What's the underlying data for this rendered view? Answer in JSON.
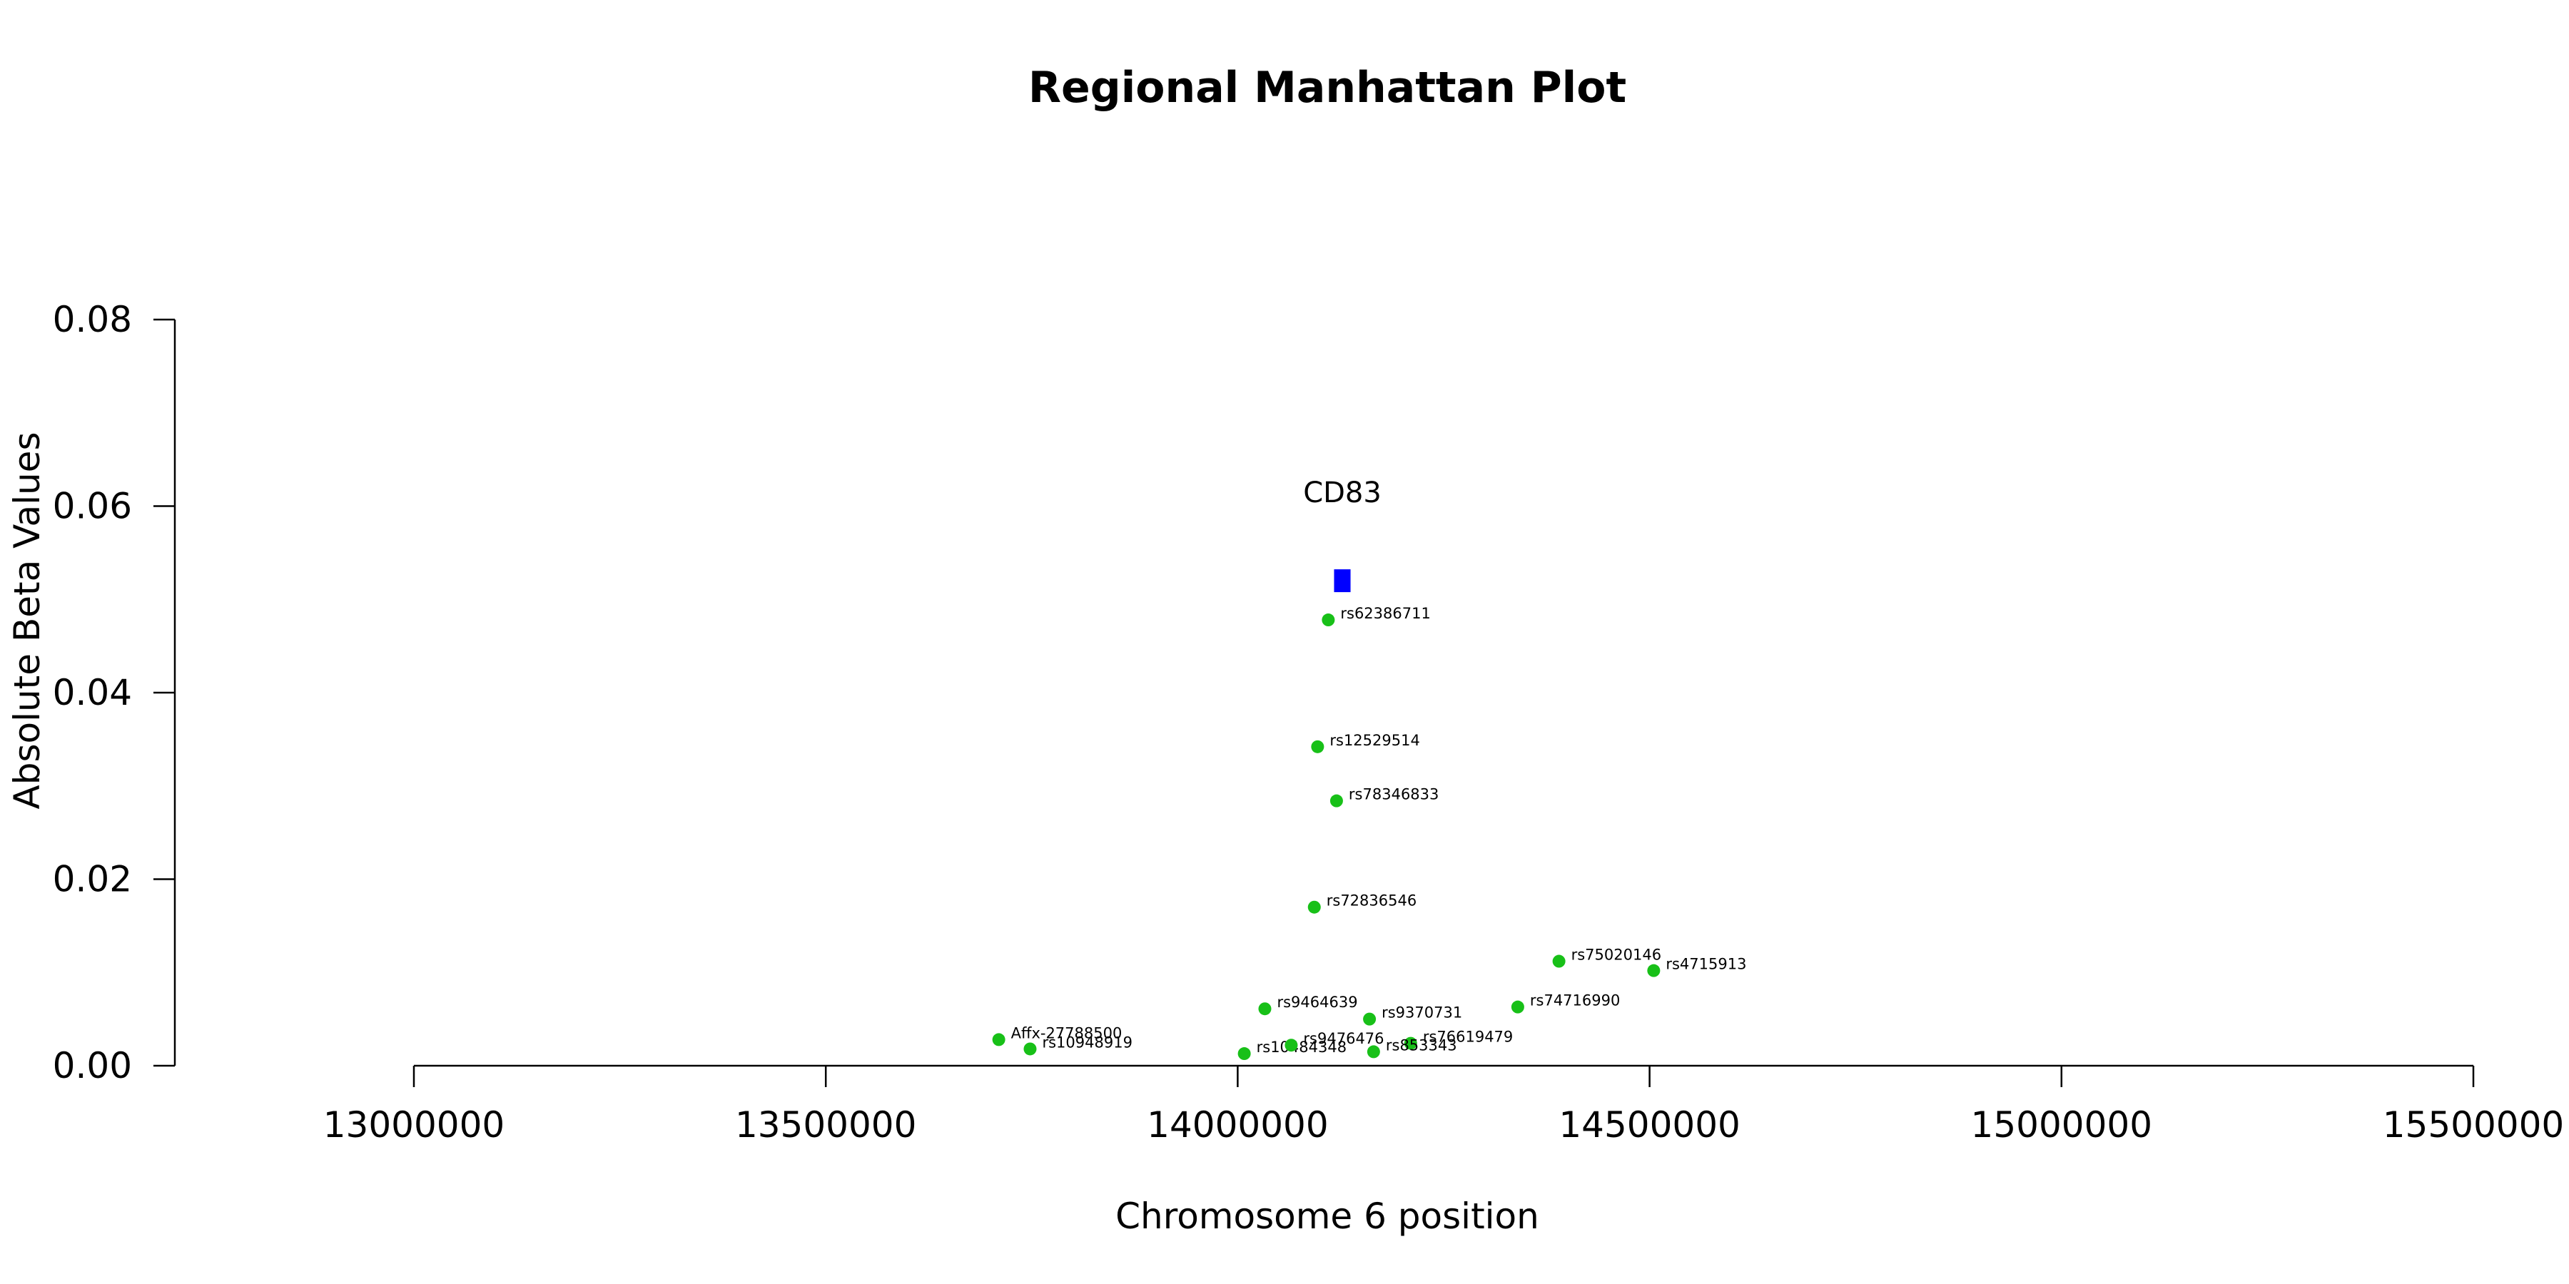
{
  "chart_data": {
    "type": "scatter",
    "title": "Regional Manhattan Plot",
    "xlabel": "Chromosome 6 position",
    "ylabel": "Absolute Beta Values",
    "xlim": [
      13000000,
      15500000
    ],
    "ylim": [
      0,
      0.08
    ],
    "xticks": [
      13000000,
      13500000,
      14000000,
      14500000,
      15000000,
      15500000
    ],
    "xtick_labels": [
      "13000000",
      "13500000",
      "14000000",
      "14500000",
      "15000000",
      "15500000"
    ],
    "yticks": [
      0,
      0.02,
      0.04,
      0.06,
      0.08
    ],
    "ytick_labels": [
      "0.00",
      "0.02",
      "0.04",
      "0.06",
      "0.08"
    ],
    "grid": false,
    "point_color": "#18c018",
    "gene_color": "#0000ff",
    "points": [
      {
        "label": "rs62386711",
        "x": 14110000,
        "y": 0.0478
      },
      {
        "label": "rs12529514",
        "x": 14097000,
        "y": 0.0342
      },
      {
        "label": "rs78346833",
        "x": 14120000,
        "y": 0.0284
      },
      {
        "label": "rs72836546",
        "x": 14093000,
        "y": 0.017
      },
      {
        "label": "rs75020146",
        "x": 14390000,
        "y": 0.0112
      },
      {
        "label": "rs4715913",
        "x": 14505000,
        "y": 0.0102
      },
      {
        "label": "rs9464639",
        "x": 14033000,
        "y": 0.0061
      },
      {
        "label": "rs74716990",
        "x": 14340000,
        "y": 0.0063
      },
      {
        "label": "rs9370731",
        "x": 14160000,
        "y": 0.005
      },
      {
        "label": "Affx-27788500",
        "x": 13710000,
        "y": 0.0028
      },
      {
        "label": "rs10948919",
        "x": 13748000,
        "y": 0.0018
      },
      {
        "label": "rs10484348",
        "x": 14008000,
        "y": 0.0013
      },
      {
        "label": "rs9476476",
        "x": 14065000,
        "y": 0.0022
      },
      {
        "label": "rs76619479",
        "x": 14210000,
        "y": 0.0024
      },
      {
        "label": "rs853343",
        "x": 14165000,
        "y": 0.0015
      }
    ],
    "genes": [
      {
        "label": "CD83",
        "x_start": 14117000,
        "x_end": 14137000,
        "y": 0.052
      }
    ]
  }
}
